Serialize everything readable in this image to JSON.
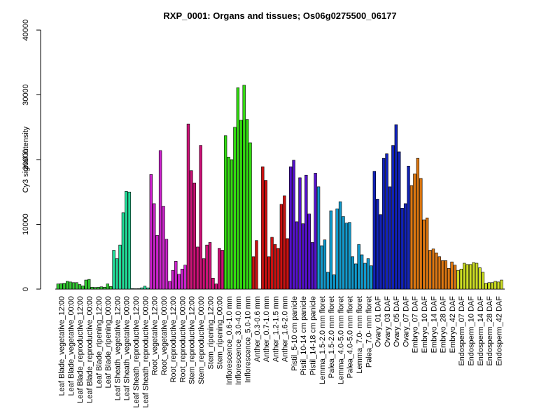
{
  "chart_data": {
    "type": "bar",
    "title": "RXP_0001: Organs and tissues; Os06g0275500_06177",
    "xlabel": "",
    "ylabel": "Cy3 signal intensity",
    "ylim": [
      0,
      40000
    ],
    "yticks": [
      0,
      10000,
      20000,
      30000,
      40000
    ],
    "grid": false,
    "legend": "none",
    "x_tick_labels": [
      "Leaf Blade_vegetative_12:00",
      "Leaf Blade_vegetative_00:00",
      "Leaf Blade_reproductive_12:00",
      "Leaf Blade_reproductive_00:00",
      "Leaf Blade_ripening_12:00",
      "Leaf Blade_ripening_00:00",
      "Leaf Sheath_vegetative_12:00",
      "Leaf Sheath_vegetative_00:00",
      "Leaf Sheath_reproductive_12:00",
      "Leaf Sheath_reproductive_00:00",
      "Root_vegetative_12:00",
      "Root_vegetative_00:00",
      "Root_reproductive_12:00",
      "Root_reproductive_00:00",
      "Stem_reproductive_12:00",
      "Stem_reproductive_00:00",
      "Stem_ripening_12:00",
      "Stem_ripening_00:00",
      "Inflorescence_0.6-1.0 mm",
      "Inflorescence_3.0-4.0 mm",
      "Inflorescence_5.0-10 mm",
      "Anther_0.3-0.6 mm",
      "Anther_0.7-1.0 mm",
      "Anther_1.2-1.5 mm",
      "Anther_1.6-2.0 mm",
      "Pistil_5-10 cm panicle",
      "Pistil_10-14 cm panicle",
      "Pistil_14-18 cm panicle",
      "Lemma_1.5-2.0 mm floret",
      "Palea_1.5-2.0 mm floret",
      "Lemma_4.0-5.0 mm floret",
      "Palea_4.0-5.0 mm floret",
      "Lemma_7.0- mm floret",
      "Palea_7.0- mm floret",
      "Ovary_01 DAF",
      "Ovary_03 DAF",
      "Ovary_05 DAF",
      "Ovary_07 DAF",
      "Embryo_07 DAF",
      "Embryo_10 DAF",
      "Embryo_14 DAF",
      "Embryo_28 DAF",
      "Embryo_42 DAF",
      "Endosperm_07 DAF",
      "Endosperm_10 DAF",
      "Endosperm_14 DAF",
      "Endosperm_28 DAF",
      "Endosperm_42 DAF"
    ],
    "groups": [
      {
        "color": "#33cc33",
        "values": [
          800,
          850,
          900
        ]
      },
      {
        "color": "#33cc33",
        "values": [
          1200,
          1100,
          1000
        ]
      },
      {
        "color": "#33cc33",
        "values": [
          1000,
          700,
          500
        ]
      },
      {
        "color": "#33cc33",
        "values": [
          1400,
          1500,
          300
        ]
      },
      {
        "color": "#33cc33",
        "values": [
          250,
          300,
          350
        ]
      },
      {
        "color": "#33cc33",
        "values": [
          300,
          800,
          400
        ]
      },
      {
        "color": "#22dd99",
        "values": [
          6000,
          4700,
          6800
        ]
      },
      {
        "color": "#22dd99",
        "values": [
          11800,
          15100,
          15000
        ]
      },
      {
        "color": "#22dd99",
        "values": [
          80,
          60,
          70
        ]
      },
      {
        "color": "#22dd99",
        "values": [
          200,
          450,
          200
        ]
      },
      {
        "color": "#cc22cc",
        "values": [
          17700,
          13200,
          8300
        ]
      },
      {
        "color": "#cc22cc",
        "values": [
          21400,
          12800,
          7700
        ]
      },
      {
        "color": "#cc22cc",
        "values": [
          1200,
          2900,
          4300
        ]
      },
      {
        "color": "#cc22cc",
        "values": [
          2300,
          3100,
          3700
        ]
      },
      {
        "color": "#cc1177",
        "values": [
          25500,
          18300,
          16400
        ]
      },
      {
        "color": "#cc1177",
        "values": [
          6500,
          22200,
          4700
        ]
      },
      {
        "color": "#cc1177",
        "values": [
          6800,
          7200,
          1700
        ]
      },
      {
        "color": "#cc1177",
        "values": [
          800,
          6300,
          6000
        ]
      },
      {
        "color": "#33dd11",
        "values": [
          23700,
          20400,
          20000
        ]
      },
      {
        "color": "#33dd11",
        "values": [
          25000,
          31100,
          26100
        ]
      },
      {
        "color": "#33dd11",
        "values": [
          31500,
          26200,
          22600
        ]
      },
      {
        "color": "#cc1111",
        "values": [
          5000,
          7500,
          0
        ]
      },
      {
        "color": "#cc1111",
        "values": [
          18900,
          16800,
          5000
        ]
      },
      {
        "color": "#cc1111",
        "values": [
          8000,
          6900,
          6300
        ]
      },
      {
        "color": "#cc1111",
        "values": [
          13100,
          14400,
          7800
        ]
      },
      {
        "color": "#5511cc",
        "values": [
          18900,
          19900,
          10400
        ]
      },
      {
        "color": "#5511cc",
        "values": [
          17200,
          10100,
          17600
        ]
      },
      {
        "color": "#5511cc",
        "values": [
          11600,
          7200,
          17900
        ]
      },
      {
        "color": "#1199cc",
        "values": [
          15800,
          6700,
          7600
        ]
      },
      {
        "color": "#1199cc",
        "values": [
          2600,
          12100,
          2200
        ]
      },
      {
        "color": "#1199cc",
        "values": [
          12400,
          13500,
          11200
        ]
      },
      {
        "color": "#1199cc",
        "values": [
          10200,
          10300,
          5000
        ]
      },
      {
        "color": "#1199cc",
        "values": [
          3900,
          6900,
          5300
        ]
      },
      {
        "color": "#1199cc",
        "values": [
          4000,
          4700,
          3600
        ]
      },
      {
        "color": "#1122bb",
        "values": [
          18200,
          13900,
          11500
        ]
      },
      {
        "color": "#1122bb",
        "values": [
          20200,
          20900,
          15800
        ]
      },
      {
        "color": "#1122bb",
        "values": [
          22200,
          25400,
          21200
        ]
      },
      {
        "color": "#1122bb",
        "values": [
          12500,
          13200,
          19000
        ]
      },
      {
        "color": "#dd7711",
        "values": [
          16000,
          17800,
          20200
        ]
      },
      {
        "color": "#dd7711",
        "values": [
          17100,
          10700,
          11000
        ]
      },
      {
        "color": "#dd7711",
        "values": [
          6000,
          6200,
          5600
        ]
      },
      {
        "color": "#dd7711",
        "values": [
          5000,
          4400,
          4400
        ]
      },
      {
        "color": "#dd7711",
        "values": [
          3200,
          4200,
          3700
        ]
      },
      {
        "color": "#ccdd22",
        "values": [
          2900,
          3100,
          4000
        ]
      },
      {
        "color": "#ccdd22",
        "values": [
          3800,
          3800,
          4100
        ]
      },
      {
        "color": "#ccdd22",
        "values": [
          4000,
          3300,
          2600
        ]
      },
      {
        "color": "#ccdd22",
        "values": [
          900,
          1000,
          1000
        ]
      },
      {
        "color": "#ccdd22",
        "values": [
          1200,
          1100,
          1400
        ]
      }
    ]
  }
}
